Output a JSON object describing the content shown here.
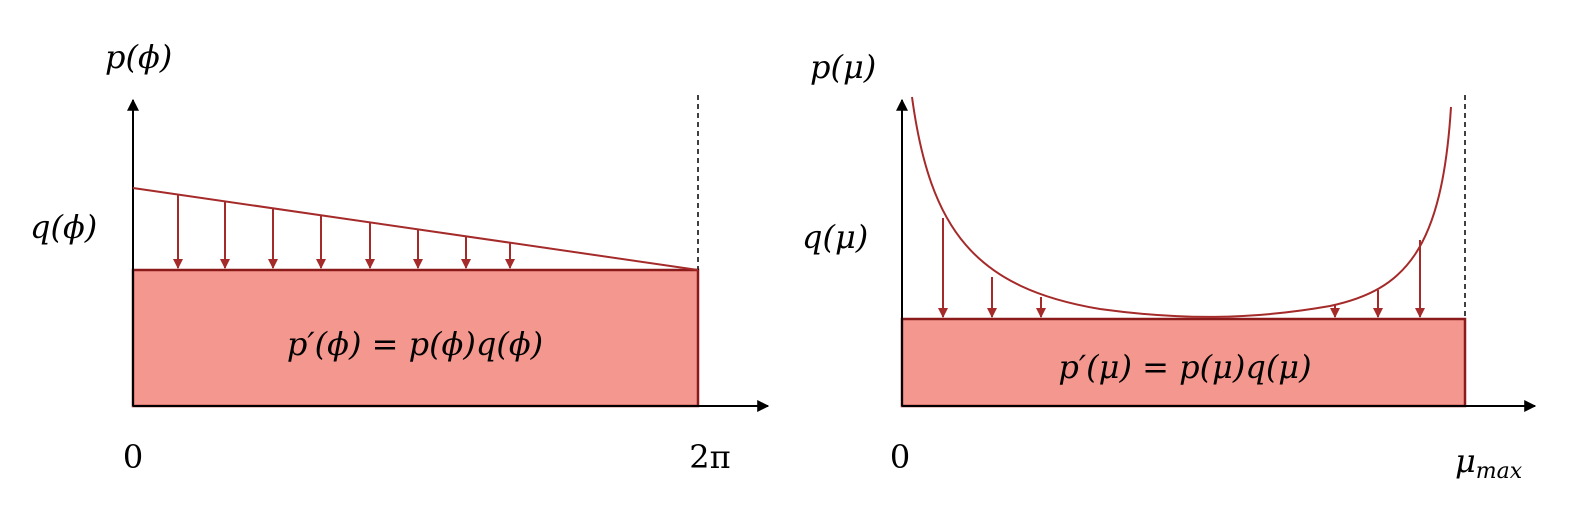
{
  "left": {
    "y_label": "p(ϕ)",
    "q_label": "q(ϕ)",
    "formula": "p′(ϕ) = p(ϕ)q(ϕ)",
    "x_start": "0",
    "x_end": "2π"
  },
  "right": {
    "y_label": "p(μ)",
    "q_label": "q(μ)",
    "formula": "p′(μ) = p(μ)q(μ)",
    "x_start": "0",
    "x_end": {
      "base": "μ",
      "sub": "max"
    }
  }
}
